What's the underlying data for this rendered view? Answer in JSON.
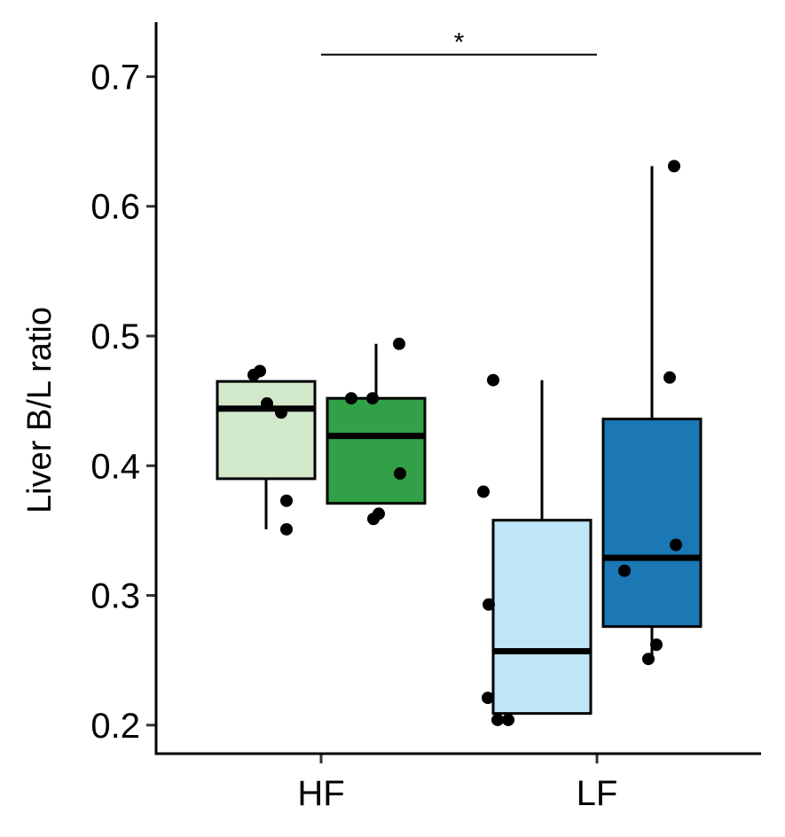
{
  "chart_data": {
    "type": "box",
    "title": "",
    "xlabel": "",
    "ylabel": "Liver B/L ratio",
    "categories": [
      "HF",
      "LF"
    ],
    "ylim": [
      0.178,
      0.742
    ],
    "yticks": [
      0.2,
      0.3,
      0.4,
      0.5,
      0.6,
      0.7
    ],
    "ytick_labels": [
      "0.2",
      "0.3",
      "0.4",
      "0.5",
      "0.6",
      "0.7"
    ],
    "grid": false,
    "legend": "none",
    "boxes": [
      {
        "category": "HF",
        "slot": 0,
        "color": "#d3e9cc",
        "whisker_low": 0.351,
        "q1": 0.39,
        "median": 0.444,
        "q3": 0.465,
        "whisker_high": 0.465,
        "points": [
          0.473,
          0.47,
          0.448,
          0.441,
          0.373,
          0.351
        ]
      },
      {
        "category": "HF",
        "slot": 1,
        "color": "#31a046",
        "whisker_low": 0.371,
        "q1": 0.371,
        "median": 0.423,
        "q3": 0.452,
        "whisker_high": 0.494,
        "points": [
          0.494,
          0.452,
          0.452,
          0.394,
          0.363,
          0.359
        ]
      },
      {
        "category": "LF",
        "slot": 0,
        "color": "#bee5f8",
        "whisker_low": 0.209,
        "q1": 0.209,
        "median": 0.257,
        "q3": 0.358,
        "whisker_high": 0.466,
        "points": [
          0.466,
          0.38,
          0.293,
          0.221,
          0.204,
          0.204
        ]
      },
      {
        "category": "LF",
        "slot": 1,
        "color": "#1b78b5",
        "whisker_low": 0.252,
        "q1": 0.276,
        "median": 0.329,
        "q3": 0.436,
        "whisker_high": 0.631,
        "points": [
          0.631,
          0.468,
          0.339,
          0.319,
          0.262,
          0.251
        ]
      }
    ],
    "annotations": [
      {
        "text": "*",
        "from": "HF",
        "to": "LF",
        "y": 0.717
      }
    ]
  }
}
